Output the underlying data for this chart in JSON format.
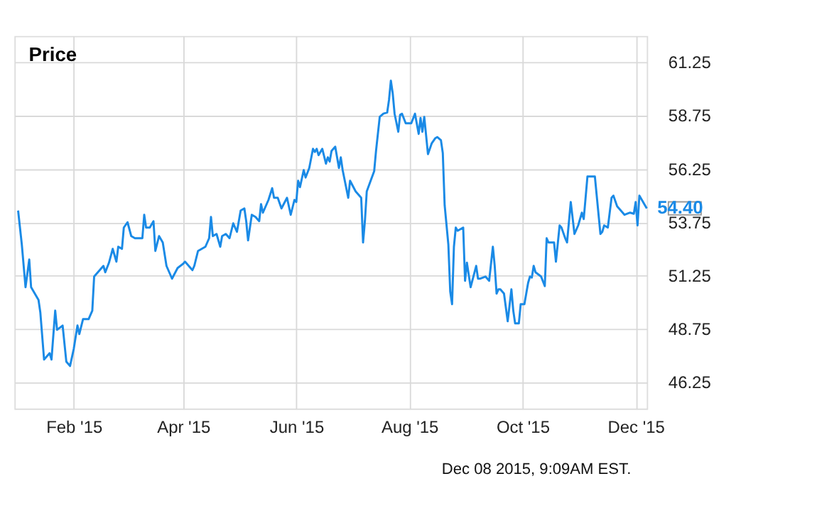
{
  "chart_data": {
    "type": "line",
    "title": "Price",
    "x": [
      "2015-01-02",
      "2015-01-04",
      "2015-01-06",
      "2015-01-08",
      "2015-01-09",
      "2015-01-13",
      "2015-01-14",
      "2015-01-16",
      "2015-01-19",
      "2015-01-20",
      "2015-01-22",
      "2015-01-23",
      "2015-01-26",
      "2015-01-28",
      "2015-01-30",
      "2015-02-01",
      "2015-02-03",
      "2015-02-04",
      "2015-02-06",
      "2015-02-09",
      "2015-02-11",
      "2015-02-12",
      "2015-02-15",
      "2015-02-17",
      "2015-02-18",
      "2015-02-20",
      "2015-02-22",
      "2015-02-24",
      "2015-02-25",
      "2015-02-27",
      "2015-02-28",
      "2015-03-02",
      "2015-03-04",
      "2015-03-06",
      "2015-03-10",
      "2015-03-11",
      "2015-03-12",
      "2015-03-14",
      "2015-03-16",
      "2015-03-17",
      "2015-03-19",
      "2015-03-21",
      "2015-03-23",
      "2015-03-26",
      "2015-03-29",
      "2015-04-01",
      "2015-04-02",
      "2015-04-06",
      "2015-04-07",
      "2015-04-09",
      "2015-04-13",
      "2015-04-15",
      "2015-04-16",
      "2015-04-17",
      "2015-04-19",
      "2015-04-21",
      "2015-04-22",
      "2015-04-24",
      "2015-04-26",
      "2015-04-28",
      "2015-04-30",
      "2015-05-02",
      "2015-05-04",
      "2015-05-05",
      "2015-05-06",
      "2015-05-08",
      "2015-05-10",
      "2015-05-12",
      "2015-05-13",
      "2015-05-14",
      "2015-05-17",
      "2015-05-19",
      "2015-05-20",
      "2015-05-22",
      "2015-05-24",
      "2015-05-27",
      "2015-05-29",
      "2015-05-31",
      "2015-06-01",
      "2015-06-02",
      "2015-06-03",
      "2015-06-05",
      "2015-06-06",
      "2015-06-08",
      "2015-06-10",
      "2015-06-11",
      "2015-06-12",
      "2015-06-13",
      "2015-06-15",
      "2015-06-17",
      "2015-06-18",
      "2015-06-19",
      "2015-06-20",
      "2015-06-22",
      "2015-06-24",
      "2015-06-25",
      "2015-06-26",
      "2015-06-29",
      "2015-06-30",
      "2015-07-03",
      "2015-07-06",
      "2015-07-07",
      "2015-07-08",
      "2015-07-09",
      "2015-07-13",
      "2015-07-14",
      "2015-07-16",
      "2015-07-18",
      "2015-07-20",
      "2015-07-21",
      "2015-07-22",
      "2015-07-23",
      "2015-07-24",
      "2015-07-26",
      "2015-07-27",
      "2015-07-28",
      "2015-07-30",
      "2015-08-02",
      "2015-08-04",
      "2015-08-06",
      "2015-08-07",
      "2015-08-08",
      "2015-08-09",
      "2015-08-11",
      "2015-08-13",
      "2015-08-15",
      "2015-08-16",
      "2015-08-18",
      "2015-08-19",
      "2015-08-20",
      "2015-08-22",
      "2015-08-23",
      "2015-08-24",
      "2015-08-25",
      "2015-08-26",
      "2015-08-27",
      "2015-08-30",
      "2015-08-31",
      "2015-09-01",
      "2015-09-03",
      "2015-09-06",
      "2015-09-07",
      "2015-09-08",
      "2015-09-11",
      "2015-09-13",
      "2015-09-15",
      "2015-09-16",
      "2015-09-17",
      "2015-09-18",
      "2015-09-19",
      "2015-09-21",
      "2015-09-23",
      "2015-09-25",
      "2015-09-26",
      "2015-09-27",
      "2015-09-29",
      "2015-09-30",
      "2015-10-02",
      "2015-10-04",
      "2015-10-05",
      "2015-10-06",
      "2015-10-07",
      "2015-10-08",
      "2015-10-11",
      "2015-10-13",
      "2015-10-14",
      "2015-10-15",
      "2015-10-18",
      "2015-10-19",
      "2015-10-21",
      "2015-10-22",
      "2015-10-24",
      "2015-10-25",
      "2015-10-27",
      "2015-10-29",
      "2015-10-31",
      "2015-11-02",
      "2015-11-03",
      "2015-11-05",
      "2015-11-07",
      "2015-11-09",
      "2015-11-12",
      "2015-11-13",
      "2015-11-14",
      "2015-11-16",
      "2015-11-18",
      "2015-11-19",
      "2015-11-21",
      "2015-11-24",
      "2015-11-25",
      "2015-11-28",
      "2015-11-30",
      "2015-12-01",
      "2015-12-02",
      "2015-12-03",
      "2015-12-07"
    ],
    "series": [
      {
        "color": "#1a8ae6",
        "values": [
          54.3,
          52.7,
          50.7,
          52.0,
          50.7,
          50.1,
          49.5,
          47.3,
          47.6,
          47.3,
          49.6,
          48.7,
          48.9,
          47.2,
          47.0,
          47.8,
          48.9,
          48.5,
          49.2,
          49.2,
          49.6,
          51.2,
          51.5,
          51.7,
          51.4,
          51.85,
          52.5,
          51.9,
          52.6,
          52.5,
          53.5,
          53.75,
          53.1,
          53.0,
          53.0,
          54.1,
          53.5,
          53.5,
          53.8,
          52.4,
          53.1,
          52.8,
          51.7,
          51.1,
          51.6,
          51.8,
          51.9,
          51.5,
          51.7,
          52.4,
          52.6,
          53.0,
          54.0,
          53.1,
          53.2,
          52.6,
          53.1,
          53.2,
          53.0,
          53.7,
          53.3,
          54.3,
          54.4,
          53.8,
          52.9,
          54.1,
          54.0,
          53.8,
          54.6,
          54.2,
          54.8,
          55.35,
          54.9,
          54.9,
          54.4,
          54.9,
          54.1,
          54.8,
          54.7,
          55.7,
          55.4,
          56.2,
          55.85,
          56.3,
          57.2,
          57.05,
          57.2,
          56.9,
          57.2,
          56.5,
          56.8,
          56.6,
          57.1,
          57.3,
          56.3,
          56.8,
          56.2,
          54.9,
          55.7,
          55.2,
          54.9,
          52.8,
          53.8,
          55.2,
          56.15,
          57.1,
          58.7,
          58.85,
          58.9,
          59.5,
          60.4,
          59.8,
          58.85,
          58.0,
          58.8,
          58.85,
          58.4,
          58.4,
          58.85,
          57.9,
          58.65,
          58.0,
          58.7,
          56.95,
          57.45,
          57.7,
          57.75,
          57.6,
          57.0,
          54.55,
          52.7,
          50.5,
          49.9,
          52.6,
          53.5,
          53.35,
          53.5,
          51.0,
          51.85,
          50.7,
          51.7,
          51.1,
          51.1,
          51.2,
          51.0,
          52.6,
          51.7,
          50.4,
          50.6,
          50.6,
          50.4,
          49.1,
          50.6,
          49.6,
          49.0,
          49.0,
          49.9,
          49.9,
          50.9,
          51.2,
          51.15,
          51.7,
          51.4,
          51.2,
          50.75,
          53.0,
          52.8,
          52.8,
          51.9,
          53.6,
          53.5,
          53.0,
          52.8,
          54.7,
          53.2,
          53.6,
          54.2,
          53.9,
          55.9,
          55.9,
          55.9,
          53.2,
          53.3,
          53.6,
          53.5,
          54.9,
          55.0,
          54.5,
          54.2,
          54.1,
          54.2,
          54.15,
          54.7,
          53.6,
          55.0,
          54.4
        ]
      }
    ],
    "xlim": [
      "2014-12-31",
      "2015-12-07"
    ],
    "xticks": [
      {
        "value": "2015-02-01",
        "label": "Feb '15"
      },
      {
        "value": "2015-04-01",
        "label": "Apr '15"
      },
      {
        "value": "2015-06-01",
        "label": "Jun '15"
      },
      {
        "value": "2015-08-01",
        "label": "Aug '15"
      },
      {
        "value": "2015-10-01",
        "label": "Oct '15"
      },
      {
        "value": "2015-12-01",
        "label": "Dec '15"
      }
    ],
    "ylim": [
      45,
      62.5
    ],
    "yticks": [
      46.25,
      48.75,
      51.25,
      53.75,
      56.25,
      58.75,
      61.25
    ],
    "grid": true,
    "annotations": [
      {
        "text": "54.40",
        "x": "2015-12-07",
        "y": 54.4
      },
      "Dec 08 2015, 9:09AM EST."
    ]
  }
}
